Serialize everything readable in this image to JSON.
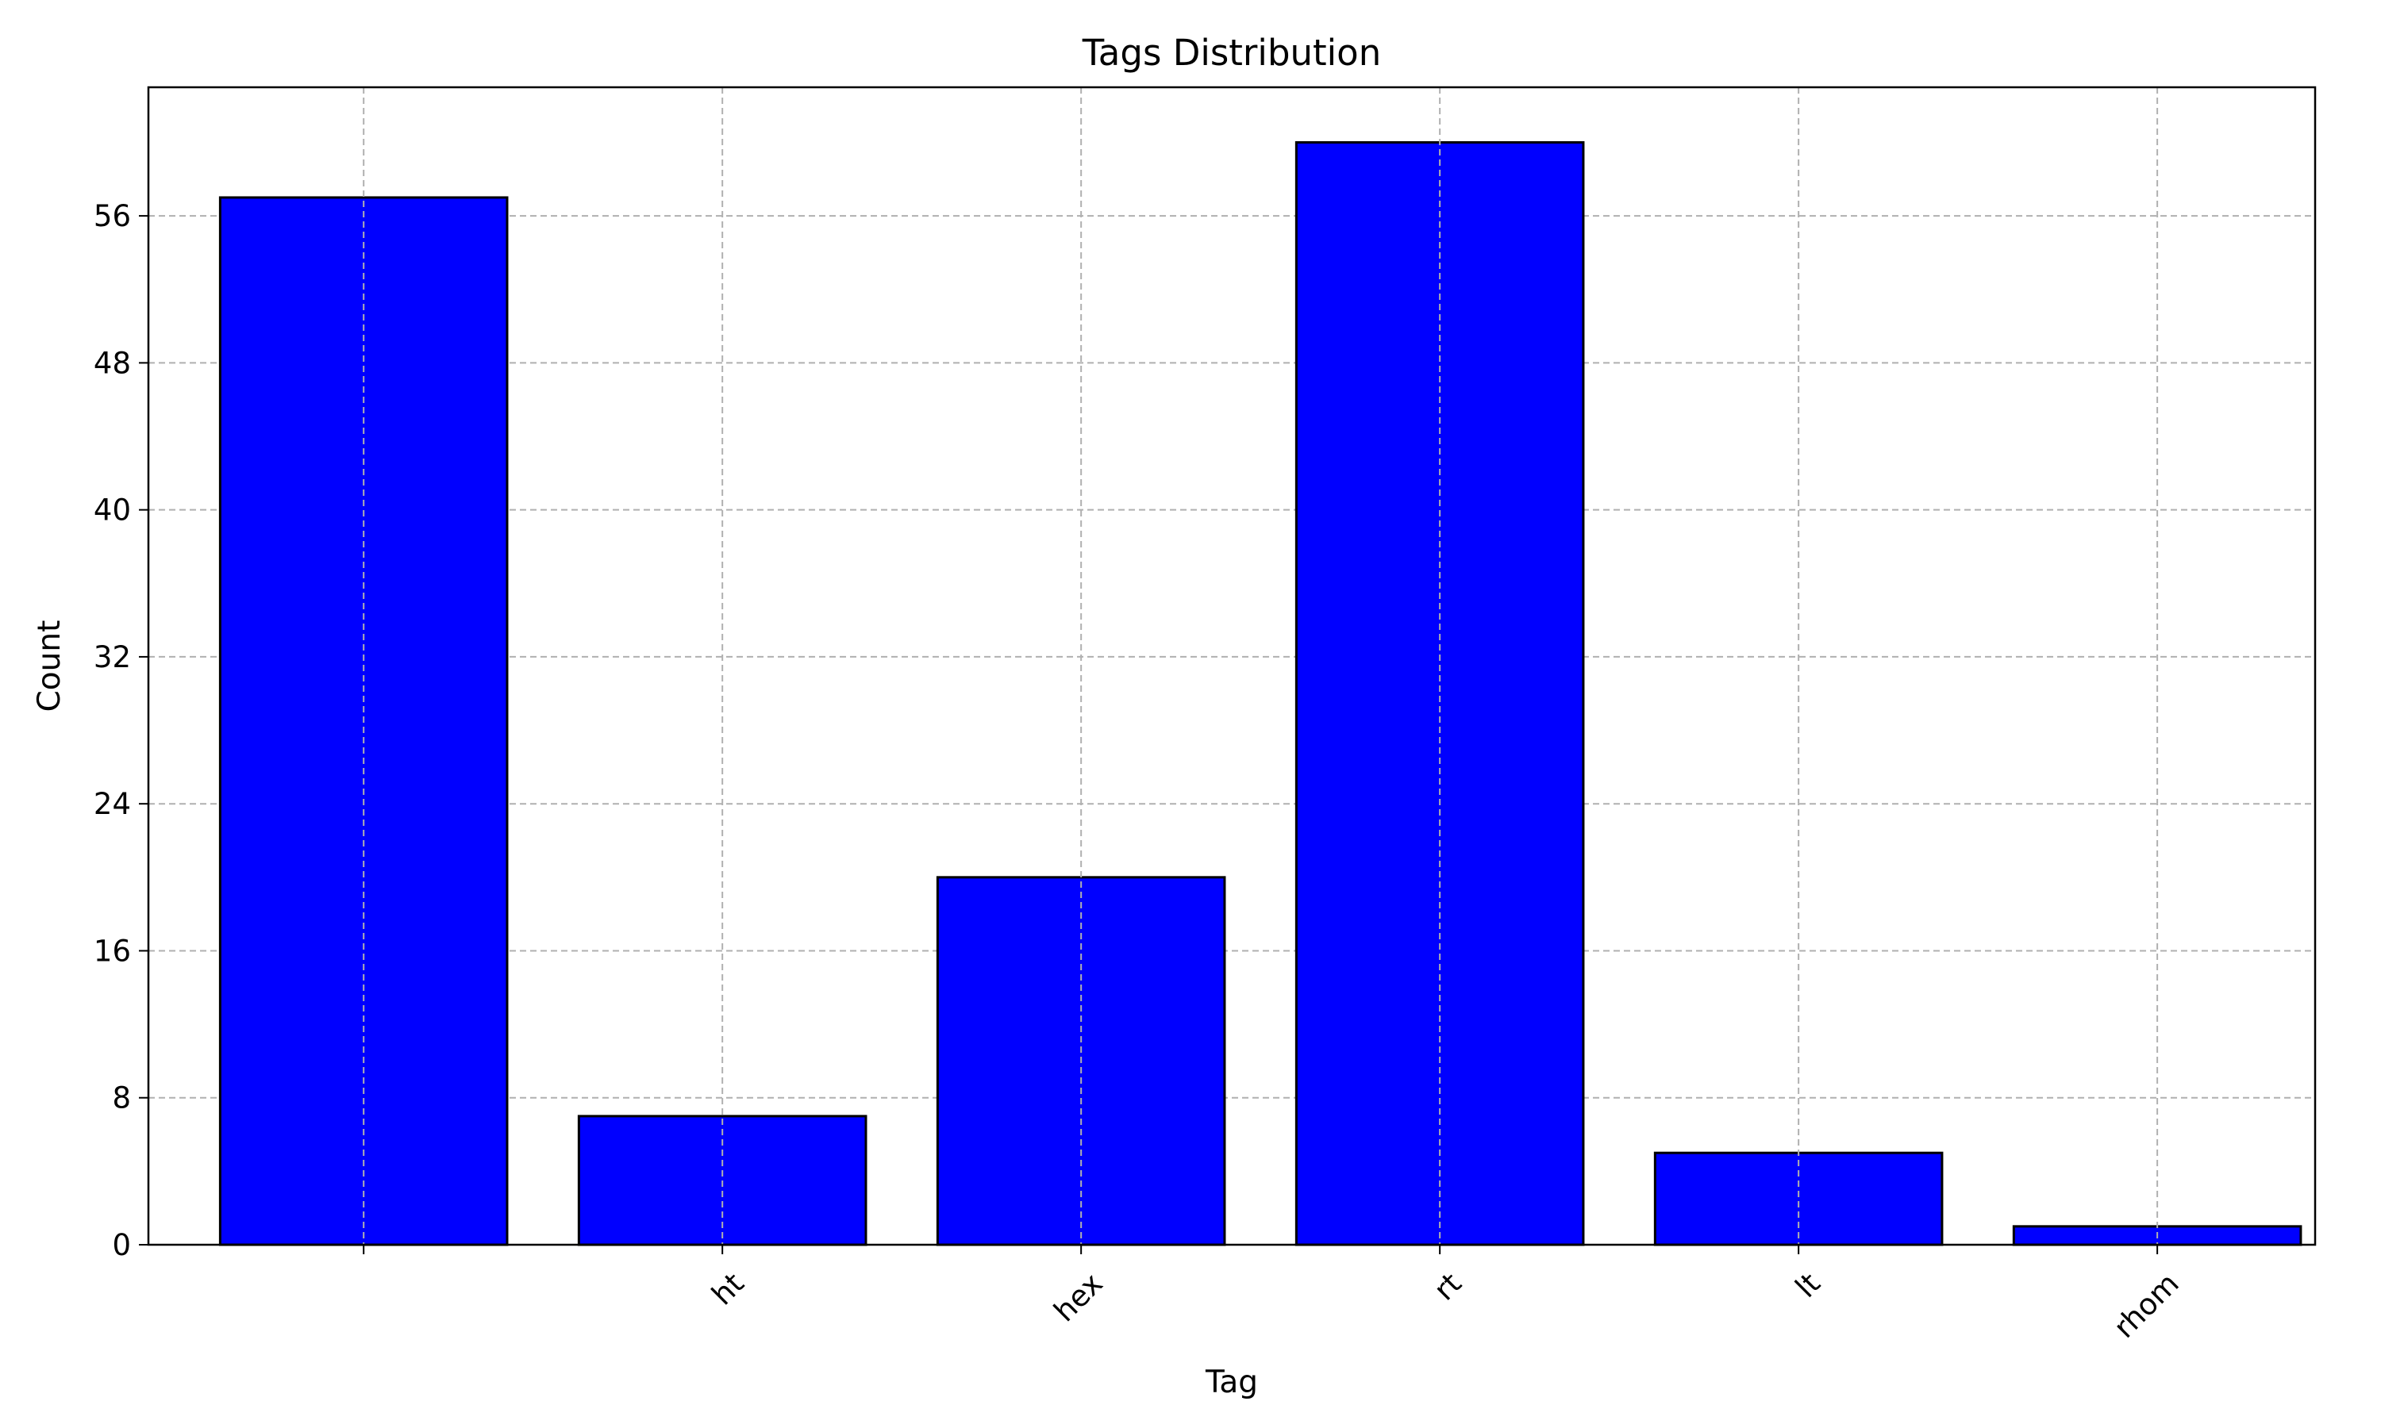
{
  "chart_data": {
    "type": "bar",
    "title": "Tags Distribution",
    "xlabel": "Tag",
    "ylabel": "Count",
    "categories": [
      "",
      "ht",
      "hex",
      "rt",
      "lt",
      "rhom"
    ],
    "values": [
      57,
      7,
      20,
      60,
      5,
      1
    ],
    "ylim": [
      0,
      63
    ],
    "yticks": [
      0,
      8,
      16,
      24,
      32,
      40,
      48,
      56
    ],
    "grid": true,
    "bar_color": "#0000ff",
    "edge_color": "#000000",
    "grid_color": "#b0b0b0",
    "x_tick_rotation": -45
  }
}
